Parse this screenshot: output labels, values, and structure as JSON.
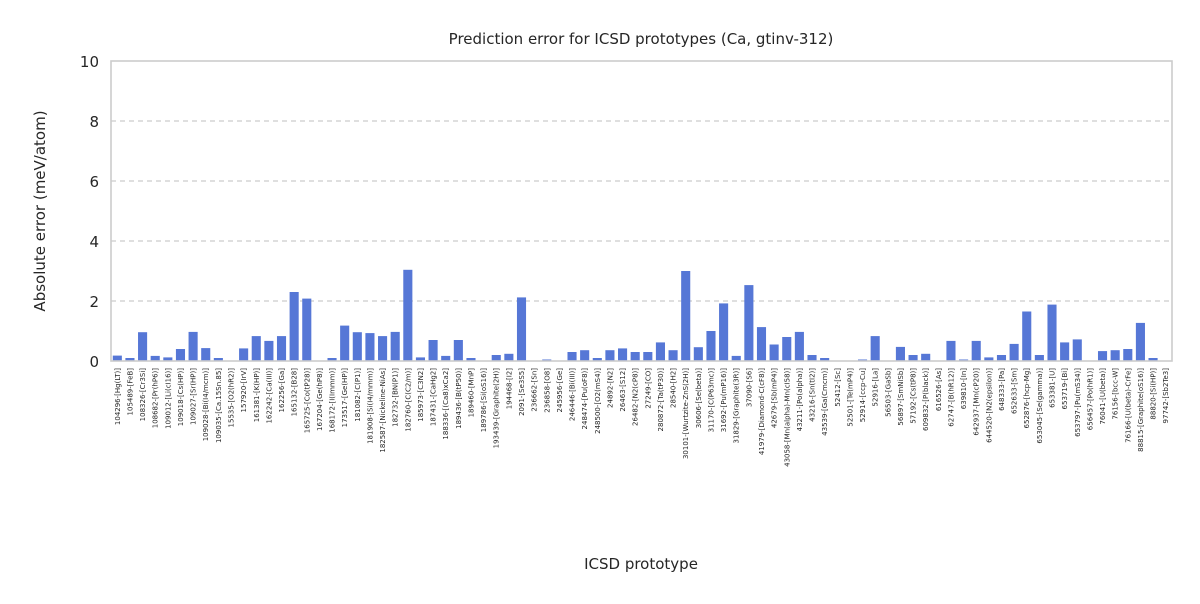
{
  "chart_data": {
    "type": "bar",
    "title": "Prediction error for ICSD prototypes (Ca, gtinv-312)",
    "xlabel": "ICSD prototype",
    "ylabel": "Absolute error (meV/atom)",
    "ylim": [
      0,
      10
    ],
    "yticks": [
      "0",
      "2",
      "4",
      "6",
      "8",
      "10"
    ],
    "grid": "y-dashed",
    "bar_color": "#5677d6",
    "categories": [
      "104296-[Hg(LT)]",
      "105489-[FeB]",
      "108326-[Cr3Si]",
      "108682-[Pr(hP6)]",
      "109012-[Li(cI16)]",
      "109018-[Cs(HP)]",
      "109027-[Sr(HP)]",
      "109028-[Bi(I4/mcm)]",
      "109035-[Ca.15Sn.85]",
      "15535-[O2(hR2)]",
      "157920-[IrV]",
      "161381-[K(HP)]",
      "162242-[Ca(III)]",
      "162256-[Ga]",
      "165132-[B28]",
      "165725-[Co(tP28)]",
      "167204-[Ge(hP8)]",
      "168172-[I(Immm)]",
      "173517-[Ge(HP)]",
      "181082-[C(P1)]",
      "181908-[Si(I4/mmm)]",
      "182587-[Nickeline-NiAs]",
      "182732-[BN(P1)]",
      "182760-[C(C2/m)]",
      "185973-[C3N2]",
      "187431-[CaHg2]",
      "188336-[(Ca8)xCa2]",
      "189436-[B(tP50)]",
      "189460-[MnP]",
      "189786-[Si(oS16)]",
      "193439-[Graphite(2H)]",
      "194468-[I2]",
      "2091-[Se3S5]",
      "236662-[Sn]",
      "236858-[O8]",
      "245956-[Ge]",
      "246446-[Bi(III)]",
      "248474-[Pu(oF8)]",
      "248500-[O2(mS4)]",
      "24892-[N2]",
      "26463-[S12]",
      "26482-[N2(cP8)]",
      "27249-[CO]",
      "280872-[Ta(tP30)]",
      "28540-[H2]",
      "30101-[Wurtzite-ZnS(2H)]",
      "30606-[Se(beta)]",
      "31170-[C(P63mc)]",
      "31692-[Pu(mP16)]",
      "31829-[Graphite(3R)]",
      "37090-[S6]",
      "41979-[Diamond-C(cF8)]",
      "42679-[Sb(mP4)]",
      "43058-[Mn(alpha)-Mn(cI58)]",
      "43211-[Po(alpha)]",
      "43216-[Sn(tI2)]",
      "43539-[Ga(Cmcm)]",
      "52412-[Sc]",
      "52501-[Te(mP4)]",
      "52914-[ccp-Cu]",
      "52916-[La]",
      "56503-[GaSb]",
      "56897-[SmNiSb]",
      "57192-[Cs(tP8)]",
      "609832-[P(black)]",
      "616526-[As]",
      "62747-[B(hR12)]",
      "639810-[In]",
      "642937-[Mn(cP20)]",
      "644520-[N2(epsilon)]",
      "648333-[Pa]",
      "652633-[Sm]",
      "652876-[hcp-Mg]",
      "653045-[Se(gamma)]",
      "653381-[U]",
      "653719-[Bi]",
      "653797-[Pu(mS34)]",
      "656457-[Po(hR1)]",
      "76041-[U(beta)]",
      "76156-[bcc-W]",
      "76166-[U(beta)-CrFe]",
      "88815-[Graphite(oS16)]",
      "88820-[Si(HP)]",
      "97742-[Sb2Te3]"
    ],
    "values": [
      0.18,
      0.1,
      0.96,
      0.17,
      0.12,
      0.4,
      0.97,
      0.43,
      0.1,
      0.0,
      0.42,
      0.83,
      0.67,
      0.83,
      2.3,
      2.08,
      0.0,
      0.1,
      1.18,
      0.96,
      0.93,
      0.83,
      0.97,
      3.04,
      0.12,
      0.7,
      0.17,
      0.7,
      0.1,
      0.0,
      0.2,
      0.24,
      2.12,
      0.0,
      0.05,
      0.0,
      0.3,
      0.36,
      0.1,
      0.36,
      0.42,
      0.3,
      0.3,
      0.62,
      0.36,
      3.0,
      0.46,
      1.0,
      1.92,
      0.17,
      2.53,
      1.13,
      0.55,
      0.8,
      0.97,
      0.2,
      0.1,
      0.0,
      0.0,
      0.05,
      0.83,
      0.0,
      0.47,
      0.2,
      0.24,
      0.0,
      0.67,
      0.05,
      0.67,
      0.12,
      0.2,
      0.57,
      1.65,
      0.2,
      1.88,
      0.62,
      0.72,
      0.0,
      0.33,
      0.36,
      0.4,
      1.27,
      0.1,
      0.0
    ]
  }
}
